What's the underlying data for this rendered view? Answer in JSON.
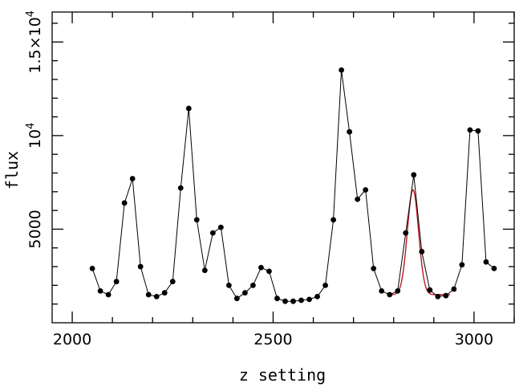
{
  "chart_data": {
    "type": "line",
    "title": "",
    "xlabel": "z setting",
    "ylabel": "flux",
    "xlim": [
      1950,
      3100
    ],
    "ylim": [
      0,
      16600
    ],
    "grid": false,
    "x_ticks": [
      {
        "value": 2000,
        "label": "2000"
      },
      {
        "value": 2500,
        "label": "2500"
      },
      {
        "value": 3000,
        "label": "3000"
      }
    ],
    "y_ticks": [
      {
        "value": 5000,
        "label": "5000",
        "exp": ""
      },
      {
        "value": 10000,
        "label": "10",
        "exp": "4"
      },
      {
        "value": 15000,
        "label": "1.5×10",
        "exp": "4"
      }
    ],
    "x_minor_step": 100,
    "y_minor_step": 1000,
    "series": [
      {
        "name": "",
        "color": "#000000",
        "markers": true,
        "x": [
          2050,
          2070,
          2090,
          2110,
          2130,
          2150,
          2170,
          2190,
          2210,
          2230,
          2250,
          2270,
          2290,
          2310,
          2330,
          2350,
          2370,
          2390,
          2410,
          2430,
          2450,
          2470,
          2490,
          2510,
          2530,
          2550,
          2570,
          2590,
          2610,
          2630,
          2650,
          2670,
          2690,
          2710,
          2730,
          2750,
          2770,
          2790,
          2810,
          2830,
          2850,
          2870,
          2890,
          2910,
          2930,
          2950,
          2970,
          2990,
          3010,
          3030,
          3050
        ],
        "y": [
          2900,
          1700,
          1500,
          2200,
          6400,
          7700,
          3000,
          1500,
          1400,
          1600,
          2200,
          7200,
          11450,
          5500,
          2800,
          4800,
          5100,
          2000,
          1300,
          1600,
          2000,
          2950,
          2750,
          1300,
          1150,
          1150,
          1200,
          1250,
          1400,
          2000,
          5500,
          13500,
          10200,
          6600,
          7100,
          2900,
          1700,
          1500,
          1700,
          4800,
          7900,
          3800,
          1750,
          1400,
          1450,
          1800,
          3100,
          10300,
          10250,
          3250,
          2900
        ]
      },
      {
        "name": "",
        "color": "#c0171f",
        "markers": false,
        "gaussian_fit": {
          "center": 2848,
          "amplitude": 5600,
          "sigma": 14,
          "baseline": 1500,
          "x_range": [
            2790,
            2940
          ]
        }
      }
    ]
  }
}
